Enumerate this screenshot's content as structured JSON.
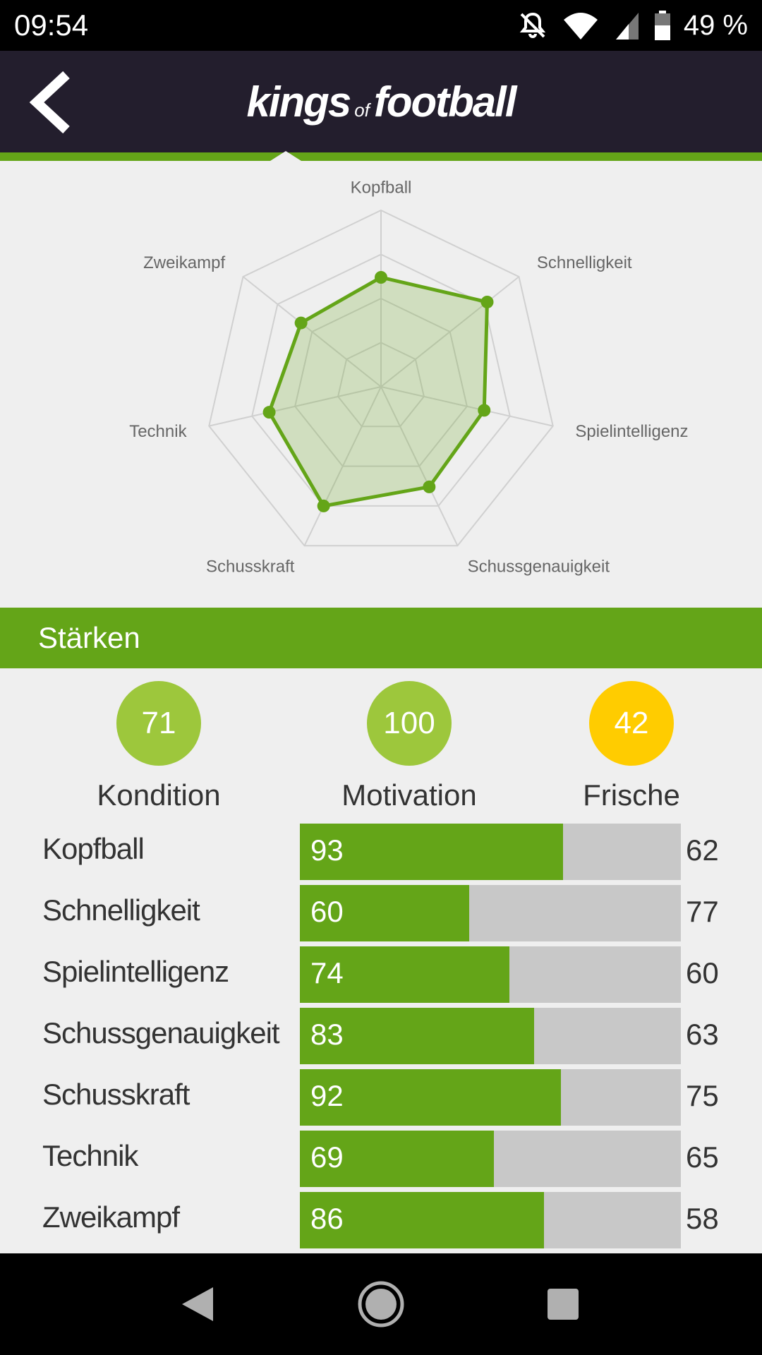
{
  "status_bar": {
    "time": "09:54",
    "battery": "49 %",
    "icons": [
      "notifications-off-icon",
      "wifi-icon",
      "signal-icon",
      "battery-icon"
    ]
  },
  "app_bar": {
    "logo_part1": "kings",
    "logo_part2": "of",
    "logo_part3": "football",
    "back_icon": "chevron-left-icon"
  },
  "radar": {
    "axes": [
      "Kopfball",
      "Schnelligkeit",
      "Spielintelligenz",
      "Schussgenauigkeit",
      "Schusskraft",
      "Technik",
      "Zweikampf"
    ],
    "values": [
      62,
      77,
      60,
      63,
      75,
      65,
      58
    ],
    "max": 100,
    "rings": 4,
    "colors": {
      "line": "#64a518",
      "fill": "rgba(100,165,24,0.22)",
      "grid": "#d0d0d0",
      "label": "#666666"
    }
  },
  "section": {
    "title": "Stärken"
  },
  "summary": [
    {
      "value": "71",
      "label": "Kondition",
      "color": "#9dc73c"
    },
    {
      "value": "100",
      "label": "Motivation",
      "color": "#9dc73c"
    },
    {
      "value": "42",
      "label": "Frische",
      "color": "#ffcc00"
    }
  ],
  "stats": [
    {
      "name": "Kopfball",
      "bar_value": 93,
      "other_value": 62,
      "fill": 0.69
    },
    {
      "name": "Schnelligkeit",
      "bar_value": 60,
      "other_value": 77,
      "fill": 0.445
    },
    {
      "name": "Spielintelligenz",
      "bar_value": 74,
      "other_value": 60,
      "fill": 0.55
    },
    {
      "name": "Schussgenauigkeit",
      "bar_value": 83,
      "other_value": 63,
      "fill": 0.615
    },
    {
      "name": "Schusskraft",
      "bar_value": 92,
      "other_value": 75,
      "fill": 0.685
    },
    {
      "name": "Technik",
      "bar_value": 69,
      "other_value": 65,
      "fill": 0.51
    },
    {
      "name": "Zweikampf",
      "bar_value": 86,
      "other_value": 58,
      "fill": 0.64
    }
  ],
  "nav_bar": {
    "icons": [
      "back-triangle-icon",
      "home-circle-icon",
      "recents-square-icon"
    ]
  }
}
